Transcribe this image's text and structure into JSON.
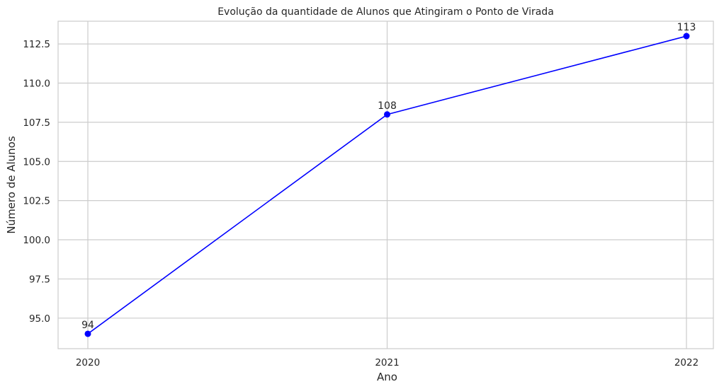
{
  "chart_data": {
    "type": "line",
    "title": "Evolução da quantidade de Alunos que Atingiram o Ponto de Virada",
    "xlabel": "Ano",
    "ylabel": "Número de Alunos",
    "x": [
      "2020",
      "2021",
      "2022"
    ],
    "series": [
      {
        "values": [
          94,
          108,
          113
        ],
        "color": "#0000ff",
        "marker": "circle"
      }
    ],
    "data_labels": [
      "94",
      "108",
      "113"
    ],
    "y_ticks": [
      95.0,
      97.5,
      100.0,
      102.5,
      105.0,
      107.5,
      110.0,
      112.5
    ],
    "y_tick_labels": [
      "95.0",
      "97.5",
      "100.0",
      "102.5",
      "105.0",
      "107.5",
      "110.0",
      "112.5"
    ],
    "ylim": [
      93.05,
      113.95
    ],
    "grid": true,
    "colors": {
      "grid": "#cccccc",
      "axes_edge": "#cccccc",
      "text": "#262626",
      "background": "#ffffff"
    }
  }
}
